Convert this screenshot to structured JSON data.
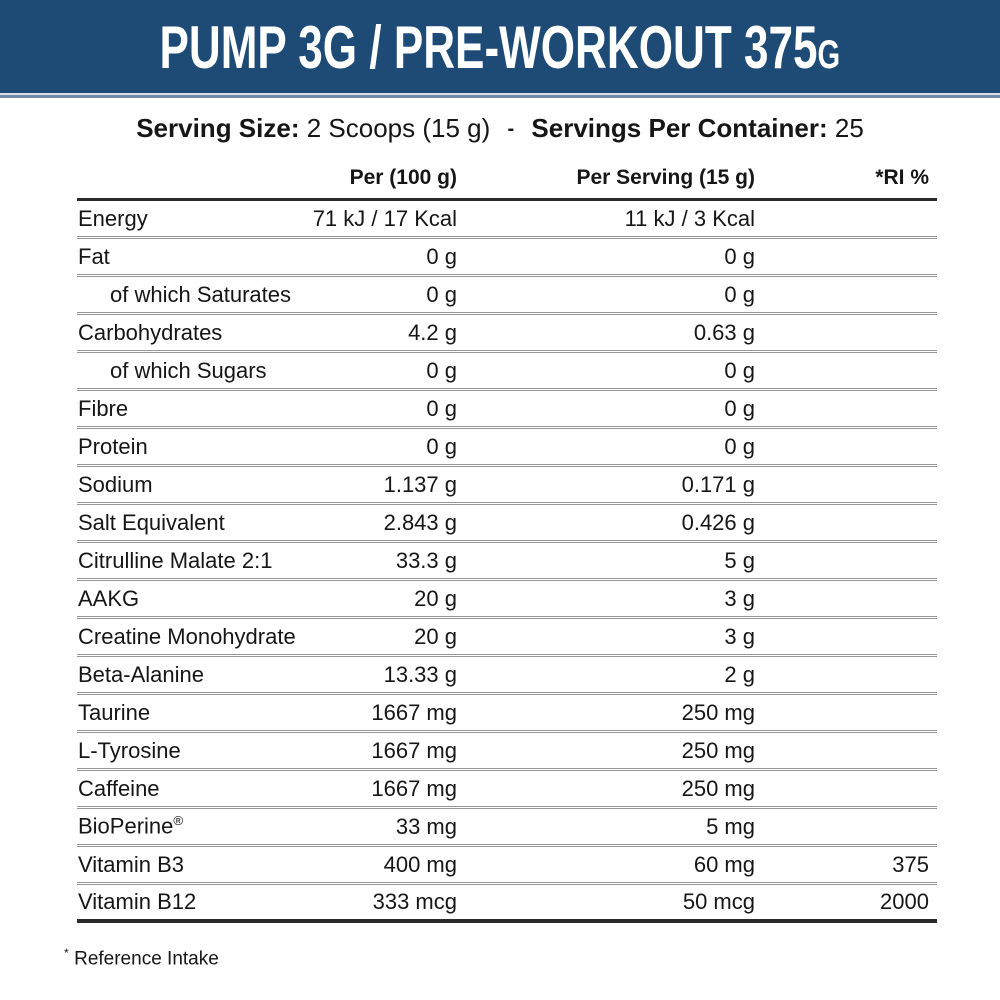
{
  "header": {
    "title_main": "PUMP 3G / PRE-WORKOUT 375",
    "title_size_suffix": "G"
  },
  "serving": {
    "size_label": "Serving Size:",
    "size_value": "2 Scoops (15 g)",
    "separator": "-",
    "per_container_label": "Servings Per Container:",
    "per_container_value": "25"
  },
  "table": {
    "columns": [
      "Per (100 g)",
      "Per Serving (15 g)",
      "*RI %"
    ],
    "rows": [
      {
        "name": "Energy",
        "per100": "71 kJ / 17 Kcal",
        "perServing": "11 kJ / 3 Kcal",
        "ri": "",
        "indent": false
      },
      {
        "name": "Fat",
        "per100": "0 g",
        "perServing": "0 g",
        "ri": "",
        "indent": false
      },
      {
        "name": "of which Saturates",
        "per100": "0 g",
        "perServing": "0 g",
        "ri": "",
        "indent": true
      },
      {
        "name": "Carbohydrates",
        "per100": "4.2 g",
        "perServing": "0.63 g",
        "ri": "",
        "indent": false
      },
      {
        "name": "of which Sugars",
        "per100": "0 g",
        "perServing": "0 g",
        "ri": "",
        "indent": true
      },
      {
        "name": "Fibre",
        "per100": "0 g",
        "perServing": "0 g",
        "ri": "",
        "indent": false
      },
      {
        "name": "Protein",
        "per100": "0 g",
        "perServing": "0 g",
        "ri": "",
        "indent": false
      },
      {
        "name": "Sodium",
        "per100": "1.137 g",
        "perServing": "0.171 g",
        "ri": "",
        "indent": false
      },
      {
        "name": "Salt Equivalent",
        "per100": "2.843 g",
        "perServing": "0.426 g",
        "ri": "",
        "indent": false
      },
      {
        "name": "Citrulline Malate 2:1",
        "per100": "33.3 g",
        "perServing": "5 g",
        "ri": "",
        "indent": false
      },
      {
        "name": "AAKG",
        "per100": "20 g",
        "perServing": "3 g",
        "ri": "",
        "indent": false
      },
      {
        "name": "Creatine Monohydrate",
        "per100": "20 g",
        "perServing": "3 g",
        "ri": "",
        "indent": false
      },
      {
        "name": "Beta-Alanine",
        "per100": "13.33 g",
        "perServing": "2 g",
        "ri": "",
        "indent": false
      },
      {
        "name": "Taurine",
        "per100": "1667 mg",
        "perServing": "250 mg",
        "ri": "",
        "indent": false
      },
      {
        "name": "L-Tyrosine",
        "per100": "1667 mg",
        "perServing": "250 mg",
        "ri": "",
        "indent": false
      },
      {
        "name": "Caffeine",
        "per100": "1667 mg",
        "perServing": "250 mg",
        "ri": "",
        "indent": false
      },
      {
        "name": "BioPerine®",
        "per100": "33 mg",
        "perServing": "5 mg",
        "ri": "",
        "indent": false
      },
      {
        "name": "Vitamin B3",
        "per100": "400 mg",
        "perServing": "60 mg",
        "ri": "375",
        "indent": false
      },
      {
        "name": "Vitamin B12",
        "per100": "333 mcg",
        "perServing": "50 mcg",
        "ri": "2000",
        "indent": false
      }
    ]
  },
  "footnote": {
    "marker": "*",
    "text": "Reference Intake"
  },
  "colors": {
    "banner_bg": "#1d4b76",
    "banner_line_light": "#d9e1e8",
    "banner_line_accent": "#6f8aa6",
    "text": "#161616",
    "rule_dark": "#2b2b2b",
    "rule_light": "#95979a",
    "page_bg": "#ffffff"
  }
}
